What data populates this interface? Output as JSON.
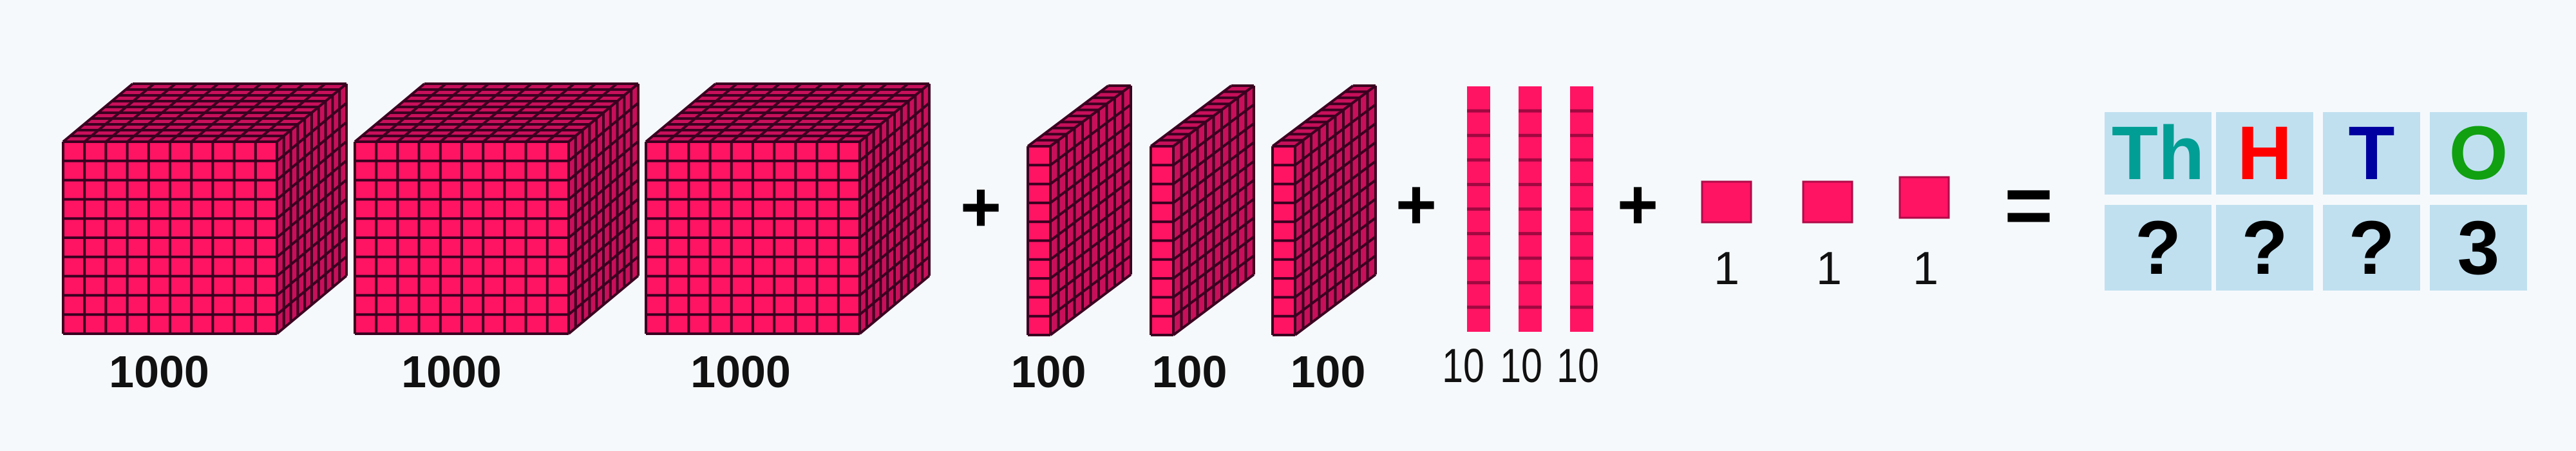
{
  "colors": {
    "block_front": "#ff1464",
    "block_shade": "#c8105a",
    "grid_line": "#3a0020",
    "background": "#f6f9fc",
    "cell": "#c0e0f0"
  },
  "blocks": {
    "thousands": {
      "count": 3,
      "label": "1000"
    },
    "hundreds": {
      "count": 3,
      "label": "100"
    },
    "tens": {
      "count": 3,
      "label": "10"
    },
    "ones": {
      "count": 3,
      "label": "1"
    }
  },
  "labels": {
    "thousands": [
      "1000",
      "1000",
      "1000"
    ],
    "hundreds": [
      "100",
      "100",
      "100"
    ],
    "tens": [
      "10",
      "10",
      "10"
    ],
    "ones": [
      "1",
      "1",
      "1"
    ]
  },
  "operators": {
    "plus": "+",
    "equals": "="
  },
  "place_value_table": {
    "headers": [
      {
        "text": "Th",
        "color": "#009e94"
      },
      {
        "text": "H",
        "color": "#ff0000"
      },
      {
        "text": "T",
        "color": "#0000a0"
      },
      {
        "text": "O",
        "color": "#10a010"
      }
    ],
    "values": [
      "?",
      "?",
      "?",
      "3"
    ]
  }
}
